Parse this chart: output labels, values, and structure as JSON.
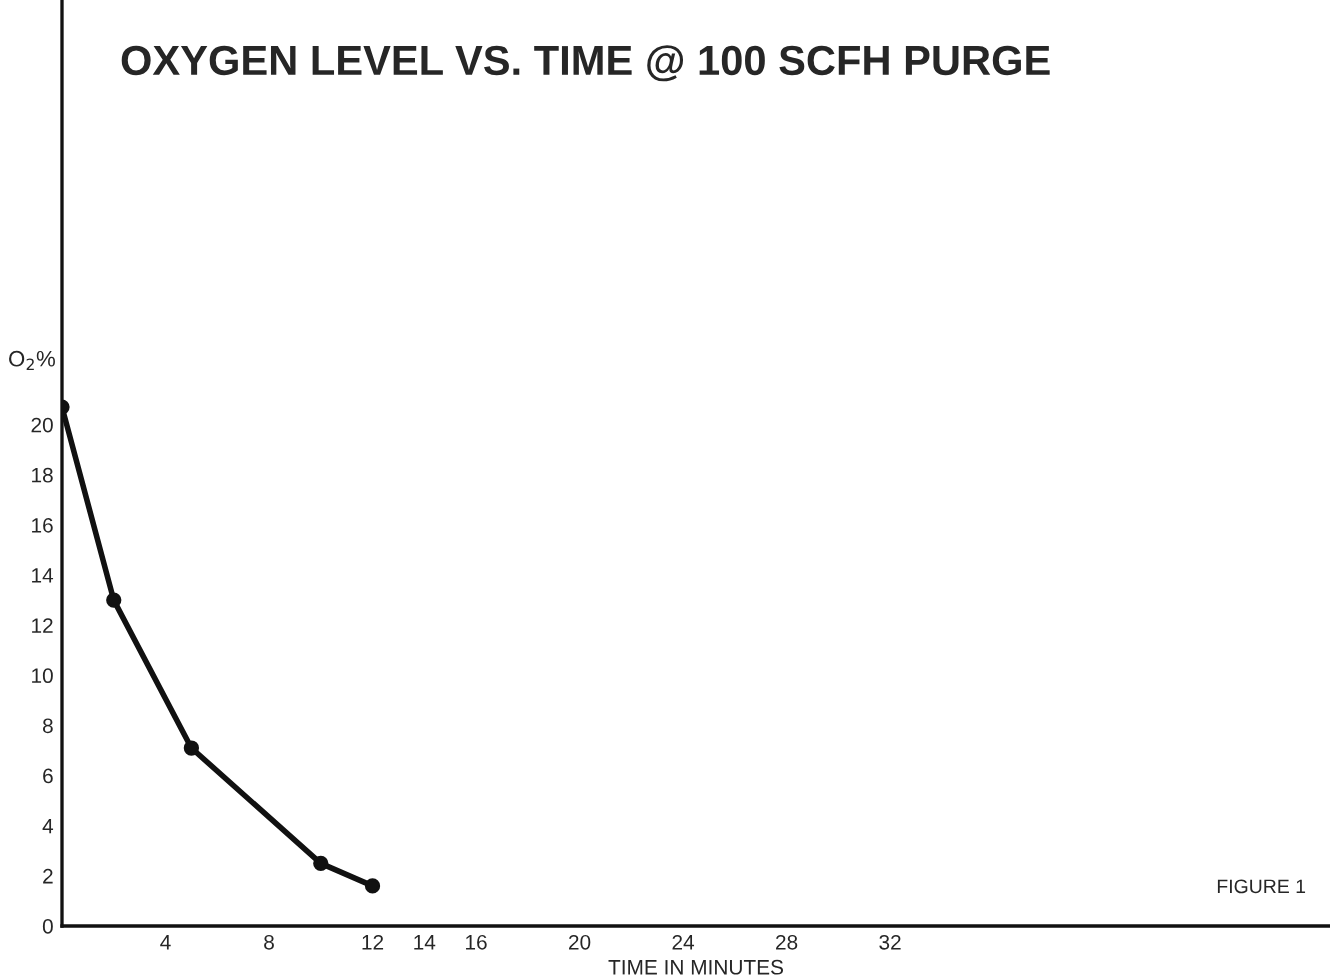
{
  "chart_data": {
    "type": "line",
    "title": "OXYGEN LEVEL VS. TIME @ 100 SCFH PURGE",
    "xlabel": "TIME IN MINUTES",
    "ylabel": "O$_{2}$%",
    "x": [
      0,
      2,
      5,
      10,
      12
    ],
    "series": [
      {
        "color": "#111111",
        "values": [
          20.7,
          13.0,
          7.1,
          2.5,
          1.6
        ]
      }
    ],
    "xlim": [
      0,
      49
    ],
    "xticks": [
      4,
      8,
      12,
      14,
      16,
      20,
      24,
      28,
      32
    ],
    "ylim": [
      0,
      36.9
    ],
    "yticks": [
      0,
      2,
      4,
      6,
      8,
      10,
      12,
      14,
      16,
      18,
      20
    ],
    "marker": "circle",
    "line_style": "solid",
    "grid": false,
    "annotations": [
      "FIGURE 1"
    ]
  }
}
